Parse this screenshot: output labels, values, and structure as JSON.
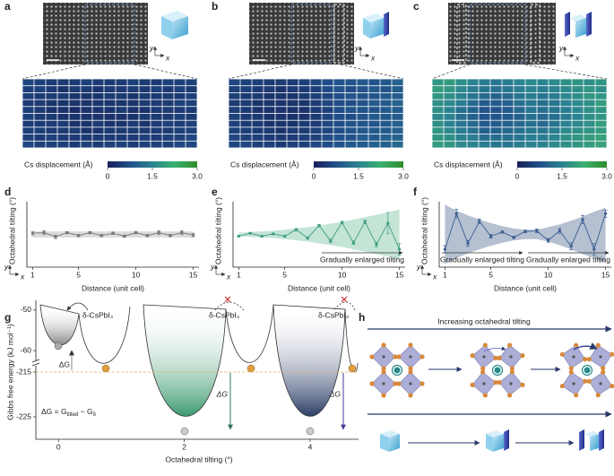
{
  "panel_labels": [
    "a",
    "b",
    "c",
    "d",
    "e",
    "f",
    "g",
    "h"
  ],
  "axis_glyph": {
    "y": "y",
    "x": "x"
  },
  "chart_data": [
    {
      "type": "heatmap",
      "colorbar_label": "Cs displacement (Å)",
      "colormap": [
        "#162058",
        "#21508a",
        "#2b8392",
        "#3bb06e",
        "#2e8b2a"
      ],
      "zlim": [
        0,
        3
      ],
      "zticks": [
        0,
        1.5,
        {
          "value": 3,
          "label": "3.0"
        }
      ],
      "values": [
        [
          0.6,
          0.5,
          0.4,
          0.4,
          0.4,
          0.5,
          0.4,
          0.4,
          0.4,
          0.5,
          0.4,
          0.4,
          0.5,
          0.5,
          0.5
        ],
        [
          0.5,
          0.5,
          0.4,
          0.3,
          0.4,
          0.4,
          0.3,
          0.4,
          0.4,
          0.4,
          0.4,
          0.5,
          0.4,
          0.5,
          0.4
        ],
        [
          0.5,
          0.4,
          0.4,
          0.4,
          0.3,
          0.3,
          0.3,
          0.4,
          0.4,
          0.3,
          0.4,
          0.4,
          0.4,
          0.4,
          0.5
        ],
        [
          0.4,
          0.4,
          0.3,
          0.3,
          0.3,
          0.3,
          0.3,
          0.3,
          0.3,
          0.3,
          0.4,
          0.4,
          0.4,
          0.5,
          0.5
        ],
        [
          0.5,
          0.4,
          0.3,
          0.3,
          0.2,
          0.3,
          0.3,
          0.3,
          0.4,
          0.3,
          0.3,
          0.4,
          0.4,
          0.4,
          0.4
        ],
        [
          0.5,
          0.4,
          0.4,
          0.3,
          0.3,
          0.3,
          0.3,
          0.3,
          0.3,
          0.3,
          0.4,
          0.4,
          0.4,
          0.5,
          0.4
        ],
        [
          0.4,
          0.4,
          0.4,
          0.4,
          0.3,
          0.3,
          0.4,
          0.3,
          0.3,
          0.4,
          0.3,
          0.4,
          0.5,
          0.4,
          0.5
        ],
        [
          0.5,
          0.5,
          0.4,
          0.4,
          0.4,
          0.3,
          0.3,
          0.4,
          0.4,
          0.4,
          0.4,
          0.4,
          0.4,
          0.5,
          0.5
        ],
        [
          0.5,
          0.4,
          0.5,
          0.4,
          0.4,
          0.4,
          0.4,
          0.4,
          0.4,
          0.4,
          0.5,
          0.4,
          0.5,
          0.5,
          0.6
        ],
        [
          0.6,
          0.5,
          0.5,
          0.5,
          0.4,
          0.5,
          0.4,
          0.5,
          0.5,
          0.4,
          0.5,
          0.5,
          0.5,
          0.6,
          0.6
        ]
      ]
    },
    {
      "type": "heatmap",
      "colorbar_label": "Cs displacement (Å)",
      "colormap": [
        "#162058",
        "#21508a",
        "#2b8392",
        "#3bb06e",
        "#2e8b2a"
      ],
      "zlim": [
        0,
        3
      ],
      "zticks": [
        0,
        1.5,
        {
          "value": 3,
          "label": "3.0"
        }
      ],
      "values": [
        [
          0.6,
          0.5,
          0.5,
          0.4,
          0.4,
          0.4,
          0.5,
          0.6,
          0.7,
          0.8,
          0.8,
          0.9,
          0.8,
          0.9,
          1.0
        ],
        [
          0.5,
          0.5,
          0.4,
          0.4,
          0.3,
          0.4,
          0.4,
          0.5,
          0.7,
          0.8,
          0.7,
          0.8,
          0.9,
          0.8,
          0.9
        ],
        [
          0.5,
          0.4,
          0.4,
          0.3,
          0.3,
          0.3,
          0.4,
          0.5,
          0.6,
          0.7,
          0.8,
          0.8,
          0.8,
          0.9,
          0.9
        ],
        [
          0.4,
          0.4,
          0.3,
          0.3,
          0.3,
          0.3,
          0.3,
          0.4,
          0.6,
          0.7,
          0.7,
          0.8,
          0.9,
          0.9,
          1.0
        ],
        [
          0.5,
          0.4,
          0.3,
          0.3,
          0.3,
          0.3,
          0.3,
          0.4,
          0.5,
          0.7,
          0.8,
          0.8,
          0.8,
          0.9,
          0.9
        ],
        [
          0.5,
          0.4,
          0.4,
          0.3,
          0.3,
          0.3,
          0.3,
          0.4,
          0.6,
          0.7,
          0.7,
          0.8,
          0.9,
          0.9,
          0.9
        ],
        [
          0.5,
          0.4,
          0.4,
          0.3,
          0.3,
          0.3,
          0.4,
          0.4,
          0.6,
          0.7,
          0.8,
          0.8,
          0.8,
          0.9,
          1.0
        ],
        [
          0.5,
          0.5,
          0.4,
          0.4,
          0.3,
          0.4,
          0.4,
          0.5,
          0.6,
          0.7,
          0.8,
          0.9,
          0.9,
          0.9,
          1.0
        ],
        [
          0.6,
          0.5,
          0.5,
          0.4,
          0.4,
          0.4,
          0.5,
          0.5,
          0.7,
          0.8,
          0.8,
          0.9,
          0.9,
          1.0,
          1.0
        ],
        [
          0.6,
          0.6,
          0.5,
          0.5,
          0.4,
          0.5,
          0.5,
          0.6,
          0.7,
          0.8,
          0.9,
          0.9,
          1.0,
          1.0,
          1.1
        ]
      ]
    },
    {
      "type": "heatmap",
      "colorbar_label": "Cs displacement (Å)",
      "colormap": [
        "#162058",
        "#21508a",
        "#2b8392",
        "#3bb06e",
        "#2e8b2a"
      ],
      "zlim": [
        0,
        3
      ],
      "zticks": [
        0,
        1.5,
        {
          "value": 3,
          "label": "3.0"
        }
      ],
      "values": [
        [
          1.8,
          1.9,
          1.7,
          1.5,
          1.4,
          1.3,
          1.4,
          1.5,
          1.6,
          1.5,
          1.6,
          1.7,
          1.8,
          1.7,
          1.8
        ],
        [
          1.9,
          1.8,
          1.6,
          1.4,
          1.3,
          1.2,
          1.3,
          1.4,
          1.5,
          1.4,
          1.5,
          1.6,
          1.7,
          1.8,
          1.7
        ],
        [
          1.8,
          1.7,
          1.5,
          1.3,
          1.1,
          1.0,
          1.1,
          1.3,
          1.4,
          1.3,
          1.4,
          1.6,
          1.7,
          1.8,
          1.8
        ],
        [
          1.7,
          1.6,
          1.4,
          1.1,
          0.9,
          0.9,
          1.0,
          1.2,
          1.3,
          1.2,
          1.3,
          1.5,
          1.6,
          1.7,
          1.9
        ],
        [
          1.7,
          1.5,
          1.2,
          1.0,
          0.8,
          0.8,
          0.9,
          1.1,
          1.3,
          1.2,
          1.3,
          1.4,
          1.6,
          1.7,
          1.8
        ],
        [
          1.6,
          1.5,
          1.2,
          1.0,
          0.8,
          0.8,
          0.9,
          1.0,
          1.2,
          1.1,
          1.2,
          1.4,
          1.5,
          1.7,
          1.8
        ],
        [
          1.7,
          1.5,
          1.3,
          1.1,
          0.9,
          0.9,
          1.0,
          1.1,
          1.2,
          1.1,
          1.3,
          1.5,
          1.6,
          1.7,
          1.9
        ],
        [
          1.8,
          1.6,
          1.4,
          1.2,
          1.0,
          1.0,
          1.1,
          1.2,
          1.3,
          1.3,
          1.4,
          1.6,
          1.7,
          1.8,
          1.9
        ],
        [
          1.8,
          1.7,
          1.5,
          1.4,
          1.2,
          1.2,
          1.2,
          1.3,
          1.4,
          1.4,
          1.5,
          1.7,
          1.8,
          1.9,
          2.0
        ],
        [
          1.9,
          1.8,
          1.6,
          1.5,
          1.4,
          1.3,
          1.3,
          1.4,
          1.5,
          1.5,
          1.6,
          1.7,
          1.8,
          1.9,
          2.0
        ]
      ]
    },
    {
      "type": "line",
      "ylabel": "Octahedral tilting (°)",
      "xlabel": "Distance (unit cell)",
      "x": [
        1,
        2,
        3,
        4,
        5,
        6,
        7,
        8,
        9,
        10,
        11,
        12,
        13,
        14,
        15
      ],
      "xlim": [
        0.5,
        15.5
      ],
      "xticks": [
        1,
        5,
        10,
        15
      ],
      "ylim": [
        -5.5,
        5.5
      ],
      "band": {
        "color": "#b0b0b0",
        "upper": [
          0.5,
          0.5,
          0.5,
          0.5,
          0.5,
          0.5,
          0.5,
          0.5,
          0.5,
          0.5,
          0.5,
          0.5,
          0.5,
          0.5,
          0.5
        ],
        "lower": [
          -0.5,
          -0.5,
          -0.5,
          -0.5,
          -0.5,
          -0.5,
          -0.5,
          -0.5,
          -0.5,
          -0.5,
          -0.5,
          -0.5,
          -0.5,
          -0.5,
          -0.5
        ]
      },
      "series": [
        {
          "color": "#777777",
          "values": [
            0.2,
            0.3,
            -0.4,
            0.3,
            -0.2,
            0.3,
            -0.2,
            0.2,
            -0.3,
            0.3,
            -0.2,
            0.3,
            -0.2,
            0.3,
            -0.1
          ],
          "errors": [
            0.3,
            0.3,
            0.3,
            0.2,
            0.2,
            0.2,
            0.2,
            0.2,
            0.2,
            0.2,
            0.2,
            0.3,
            0.2,
            0.3,
            0.3
          ]
        }
      ]
    },
    {
      "type": "line",
      "ylabel": "Octahedral tilting (°)",
      "xlabel": "Distance (unit cell)",
      "x": [
        1,
        2,
        3,
        4,
        5,
        6,
        7,
        8,
        9,
        10,
        11,
        12,
        13,
        14,
        15
      ],
      "xlim": [
        0.5,
        15.5
      ],
      "xticks": [
        1,
        5,
        10,
        15
      ],
      "ylim": [
        -5.5,
        5.5
      ],
      "band": {
        "color": "#7cc4a4",
        "upper": [
          0.3,
          0.4,
          0.5,
          0.6,
          0.8,
          1.0,
          1.2,
          1.5,
          1.8,
          2.1,
          2.5,
          2.9,
          3.3,
          3.7,
          4.2
        ],
        "lower": [
          -0.3,
          -0.4,
          -0.5,
          -0.6,
          -0.8,
          -1.0,
          -1.2,
          -1.5,
          -1.8,
          -2.1,
          -2.5,
          -2.9,
          -3.3,
          -3.7,
          -4.2
        ]
      },
      "series": [
        {
          "color": "#3f9e80",
          "values": [
            -0.3,
            0.2,
            -0.3,
            0.1,
            -0.3,
            0.8,
            -0.6,
            1.5,
            -1.1,
            2.0,
            -1.4,
            2.1,
            -1.7,
            1.9,
            -2.5
          ],
          "errors": [
            0.1,
            0.1,
            0.1,
            0.1,
            0.1,
            0.2,
            0.2,
            0.2,
            0.3,
            0.2,
            0.3,
            0.3,
            0.4,
            1.8,
            1.0
          ]
        }
      ],
      "annotations": [
        "Gradually enlarged tilting"
      ]
    },
    {
      "type": "line",
      "ylabel": "Octahedral tilting (°)",
      "xlabel": "Distance (unit cell)",
      "x": [
        1,
        2,
        3,
        4,
        5,
        6,
        7,
        8,
        9,
        10,
        11,
        12,
        13,
        14,
        15
      ],
      "xlim": [
        0.5,
        15.5
      ],
      "xticks": [
        1,
        5,
        10,
        15
      ],
      "ylim": [
        -5.5,
        5.5
      ],
      "band": {
        "color": "#5c7398",
        "upper": [
          5.0,
          4.0,
          3.2,
          2.5,
          1.9,
          1.4,
          1.0,
          0.8,
          0.8,
          1.2,
          1.7,
          2.3,
          3.0,
          3.8,
          4.5
        ],
        "lower": [
          -5.0,
          -4.0,
          -3.2,
          -2.5,
          -1.9,
          -1.4,
          -1.0,
          -0.8,
          -0.8,
          -1.2,
          -1.8,
          -2.5,
          -3.3,
          -4.0,
          -4.8
        ]
      },
      "series": [
        {
          "color": "#3c5f90",
          "values": [
            -2.5,
            3.5,
            -1.5,
            2.2,
            -0.3,
            0.4,
            -0.5,
            0.5,
            0.6,
            -1.0,
            0.6,
            -2.0,
            2.5,
            -2.5,
            3.5
          ],
          "errors": [
            0.6,
            0.7,
            0.5,
            0.4,
            0.3,
            0.2,
            0.2,
            0.2,
            0.3,
            0.3,
            0.4,
            0.6,
            0.7,
            1.0,
            0.6
          ]
        }
      ],
      "annotations": [
        "Gradually enlarged tilting",
        "Gradually enlarged tilting"
      ]
    },
    {
      "type": "energy",
      "ylabel": "Gibbs free energy (kJ mol⁻¹)",
      "xlabel": "Octahedral tilting (°)",
      "xlim": [
        -0.36,
        4.77
      ],
      "xticks": [
        0,
        2,
        4
      ],
      "ylim_upper": [
        -62.4,
        -47.6
      ],
      "ylim_lower": [
        -230,
        -213.6
      ],
      "yticks": [
        -50,
        -60,
        -215,
        -225
      ],
      "phase_labels": [
        "δ-CsPbI₃",
        "δ-CsPbI₃",
        "δ-CsPbI₃"
      ],
      "delta_labels": [
        "ΔG",
        "ΔG",
        "ΔG"
      ],
      "formula": [
        "ΔG = G",
        "tilted",
        " − G",
        "δ"
      ]
    }
  ],
  "schematic": {
    "title": "Increasing octahedral tilting"
  }
}
